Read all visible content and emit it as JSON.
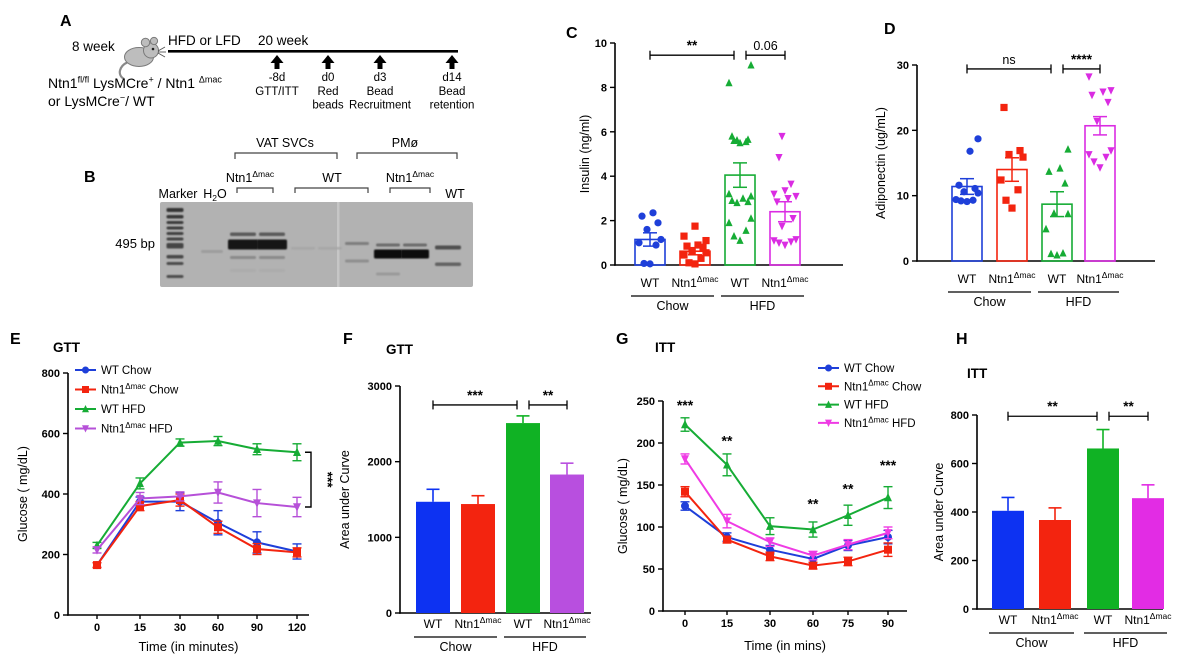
{
  "figure": {
    "background": "#ffffff"
  },
  "panels": {
    "letters": {
      "A": "A",
      "B": "B",
      "C": "C",
      "D": "D",
      "E": "E",
      "F": "F",
      "G": "G",
      "H": "H"
    }
  },
  "panelA": {
    "age_label": "8 week",
    "diet_label": "HFD or LFD",
    "duration_label": "20 week",
    "genotype_line1": [
      {
        "t": "Ntn1"
      },
      {
        "sup": "fl/fl"
      },
      {
        "t": " LysMCre"
      },
      {
        "sup": "+"
      },
      {
        "t": " / Ntn1 "
      },
      {
        "sup": "Δmac"
      }
    ],
    "genotype_line2": [
      {
        "t": "or LysMCre"
      },
      {
        "sup": "−"
      },
      {
        "t": "/ WT"
      }
    ],
    "events": [
      {
        "day": "-8d",
        "desc": [
          "GTT/ITT"
        ]
      },
      {
        "day": "d0",
        "desc": [
          "Red",
          "beads"
        ]
      },
      {
        "day": "d3",
        "desc": [
          "Bead",
          "Recruitment"
        ]
      },
      {
        "day": "d14",
        "desc": [
          "Bead",
          "retention"
        ]
      }
    ]
  },
  "panelB": {
    "top_groups": [
      {
        "label": "VAT SVCs"
      },
      {
        "label": "PMø"
      }
    ],
    "sample_labels": [
      [
        {
          "t": "Ntn1"
        },
        {
          "sup": "Δmac"
        }
      ],
      [
        {
          "t": "WT"
        }
      ],
      [
        {
          "t": "Ntn1"
        },
        {
          "sup": "Δmac"
        }
      ],
      [
        {
          "t": "WT"
        }
      ]
    ],
    "marker_label": "Marker",
    "water_label": [
      {
        "t": "H"
      },
      {
        "sub": "2"
      },
      {
        "t": "O"
      }
    ],
    "size_label": "495 bp",
    "gel_bg": "#b2b2b2"
  },
  "chart_data": [
    {
      "id": "C",
      "type": "scatter-bar",
      "title": null,
      "ylabel": "Insulin (ng/ml)",
      "ylim": [
        0,
        10
      ],
      "yticks": [
        0,
        2,
        4,
        6,
        8,
        10
      ],
      "groups": [
        {
          "label": "WT",
          "color": "#1e3fd9",
          "marker": "circle",
          "mean": 1.15,
          "sem": 0.3,
          "points": [
            0.05,
            0.07,
            0.9,
            1.0,
            1.15,
            1.6,
            1.9,
            2.2,
            2.35
          ]
        },
        {
          "label": "Ntn1",
          "sup": "Δmac",
          "color": "#f3240f",
          "marker": "square",
          "mean": 0.62,
          "sem": 0.16,
          "points": [
            0.05,
            0.1,
            0.3,
            0.45,
            0.55,
            0.62,
            0.8,
            0.85,
            0.9,
            1.1,
            1.3,
            1.75
          ]
        },
        {
          "label": "WT",
          "color": "#16ac35",
          "marker": "triangle-up",
          "mean": 4.05,
          "sem": 0.55,
          "points": [
            1.1,
            1.3,
            1.55,
            1.9,
            2.1,
            2.8,
            2.85,
            2.9,
            3.0,
            3.1,
            3.2,
            5.5,
            5.55,
            5.6,
            5.62,
            5.65,
            5.8,
            8.2,
            9.0
          ]
        },
        {
          "label": "Ntn1",
          "sup": "Δmac",
          "color": "#da2ce2",
          "marker": "triangle-down",
          "mean": 2.4,
          "sem": 0.45,
          "points": [
            0.9,
            1.0,
            1.05,
            1.1,
            1.15,
            1.75,
            2.1,
            2.85,
            3.0,
            3.1,
            3.2,
            3.35,
            3.65,
            4.85,
            5.8
          ]
        }
      ],
      "diet_groups": [
        {
          "label": "Chow",
          "from": 0,
          "to": 1
        },
        {
          "label": "HFD",
          "from": 2,
          "to": 3
        }
      ],
      "brackets": [
        {
          "from": 0,
          "to": 2,
          "label": "**",
          "y": 9.45
        },
        {
          "from": 2,
          "to": 3,
          "label": "0.06",
          "y": 9.45
        }
      ]
    },
    {
      "id": "D",
      "type": "scatter-bar",
      "title": null,
      "ylabel": "Adiponectin (ug/mL)",
      "ylim": [
        0,
        30
      ],
      "yticks": [
        0,
        10,
        20,
        30
      ],
      "groups": [
        {
          "label": "WT",
          "color": "#1e3fd9",
          "marker": "circle",
          "mean": 11.4,
          "sem": 1.2,
          "points": [
            9.1,
            9.2,
            9.3,
            9.4,
            10.4,
            10.6,
            11.1,
            11.6,
            16.8,
            18.7
          ]
        },
        {
          "label": "Ntn1",
          "sup": "Δmac",
          "color": "#f3240f",
          "marker": "square",
          "mean": 14.0,
          "sem": 1.8,
          "points": [
            8.1,
            9.3,
            10.9,
            12.4,
            15.9,
            16.3,
            16.9,
            23.5
          ]
        },
        {
          "label": "WT",
          "color": "#16ac35",
          "marker": "triangle-up",
          "mean": 8.7,
          "sem": 1.9,
          "points": [
            0.9,
            1.1,
            1.2,
            4.9,
            7.2,
            7.3,
            11.9,
            13.7,
            14.2,
            17.1
          ]
        },
        {
          "label": "Ntn1",
          "sup": "Δmac",
          "color": "#da2ce2",
          "marker": "triangle-down",
          "mean": 20.7,
          "sem": 1.4,
          "points": [
            14.3,
            15.2,
            15.9,
            16.3,
            16.9,
            21.4,
            24.3,
            25.4,
            25.9,
            26.1,
            28.2
          ]
        }
      ],
      "diet_groups": [
        {
          "label": "Chow",
          "from": 0,
          "to": 1
        },
        {
          "label": "HFD",
          "from": 2,
          "to": 3
        }
      ],
      "brackets": [
        {
          "from": 0,
          "to": 2,
          "label": "ns",
          "y": 29.4
        },
        {
          "from": 2,
          "to": 3,
          "label": "****",
          "y": 29.4
        }
      ]
    },
    {
      "id": "E",
      "type": "line",
      "title": "GTT",
      "ylabel": "Glucose ( mg/dL)",
      "xlabel": "Time (in minutes)",
      "ylim": [
        0,
        800
      ],
      "yticks": [
        0,
        200,
        400,
        600,
        800
      ],
      "x": [
        0,
        15,
        30,
        60,
        90,
        120
      ],
      "series": [
        {
          "legend": [
            {
              "t": "WT Chow"
            }
          ],
          "color": "#1e3fd9",
          "marker": "circle",
          "values": [
            165,
            375,
            375,
            305,
            240,
            210
          ],
          "err": [
            8,
            15,
            30,
            40,
            35,
            25
          ]
        },
        {
          "legend": [
            {
              "t": "Ntn1"
            },
            {
              "sup": "Δmac"
            },
            {
              "t": " Chow"
            }
          ],
          "color": "#f3240f",
          "marker": "square",
          "values": [
            165,
            360,
            380,
            290,
            218,
            207
          ],
          "err": [
            8,
            15,
            20,
            20,
            18,
            15
          ]
        },
        {
          "legend": [
            {
              "t": "WT  HFD"
            }
          ],
          "color": "#16ac35",
          "marker": "triangle-up",
          "values": [
            230,
            435,
            570,
            575,
            548,
            538
          ],
          "err": [
            10,
            18,
            12,
            15,
            18,
            28
          ]
        },
        {
          "legend": [
            {
              "t": "Ntn1"
            },
            {
              "sup": "Δmac"
            },
            {
              "t": " HFD"
            }
          ],
          "color": "#b650d8",
          "marker": "triangle-down",
          "values": [
            215,
            385,
            392,
            405,
            370,
            357
          ],
          "err": [
            10,
            20,
            15,
            35,
            45,
            32
          ]
        }
      ],
      "right_bracket": {
        "label": "***",
        "series_top": 2,
        "series_bottom": 3
      }
    },
    {
      "id": "F",
      "type": "bar",
      "title": "GTT",
      "ylabel": "Area under Curve",
      "ylim": [
        0,
        3000
      ],
      "yticks": [
        0,
        1000,
        2000,
        3000
      ],
      "groups": [
        {
          "label": "WT",
          "color": "#0d32f2",
          "value": 1470,
          "err": 165
        },
        {
          "label": "Ntn1",
          "sup": "Δmac",
          "color": "#f3240f",
          "value": 1440,
          "err": 110
        },
        {
          "label": "WT",
          "color": "#10b224",
          "value": 2510,
          "err": 95
        },
        {
          "label": "Ntn1",
          "sup": "Δmac",
          "color": "#b84fdf",
          "value": 1830,
          "err": 150
        }
      ],
      "diet_groups": [
        {
          "label": "Chow",
          "from": 0,
          "to": 1
        },
        {
          "label": "HFD",
          "from": 2,
          "to": 3
        }
      ],
      "brackets": [
        {
          "from": 0,
          "to": 2,
          "label": "***",
          "y": 2750
        },
        {
          "from": 2,
          "to": 3,
          "label": "**",
          "y": 2750
        }
      ]
    },
    {
      "id": "G",
      "type": "line",
      "title": "ITT",
      "ylabel": "Glucose ( mg/dL)",
      "xlabel": "Time (in mins)",
      "ylim": [
        0,
        250
      ],
      "yticks": [
        0,
        50,
        100,
        150,
        200,
        250
      ],
      "x": [
        0,
        15,
        30,
        60,
        75,
        90
      ],
      "series": [
        {
          "legend": [
            {
              "t": "WT Chow"
            }
          ],
          "color": "#1e3fd9",
          "marker": "circle",
          "values": [
            125,
            88,
            73,
            62,
            78,
            88
          ],
          "err": [
            5,
            5,
            5,
            6,
            6,
            8
          ]
        },
        {
          "legend": [
            {
              "t": "Ntn1"
            },
            {
              "sup": "Δmac"
            },
            {
              "t": " Chow"
            }
          ],
          "color": "#f3240f",
          "marker": "square",
          "values": [
            142,
            85,
            65,
            54,
            59,
            73
          ],
          "err": [
            6,
            4,
            5,
            4,
            5,
            8
          ]
        },
        {
          "legend": [
            {
              "t": "WT  HFD"
            }
          ],
          "color": "#16ac35",
          "marker": "triangle-up",
          "values": [
            222,
            174,
            101,
            97,
            114,
            135
          ],
          "err": [
            8,
            13,
            10,
            9,
            12,
            13
          ]
        },
        {
          "legend": [
            {
              "t": "Ntn1"
            },
            {
              "sup": "Δmac"
            },
            {
              "t": " HFD"
            }
          ],
          "color": "#ef3be4",
          "marker": "triangle-down",
          "values": [
            181,
            107,
            82,
            66,
            79,
            93
          ],
          "err": [
            6,
            8,
            5,
            5,
            6,
            7
          ]
        }
      ],
      "stars": [
        {
          "xi": 0,
          "y": 239,
          "label": "***"
        },
        {
          "xi": 1,
          "y": 197,
          "label": "**"
        },
        {
          "xi": 3,
          "y": 122,
          "label": "**"
        },
        {
          "xi": 4,
          "y": 140,
          "label": "**"
        },
        {
          "xi": 5,
          "y": 168,
          "label": "***"
        }
      ]
    },
    {
      "id": "H",
      "type": "bar",
      "title": "ITT",
      "ylabel": "Area under Curve",
      "ylim": [
        0,
        800
      ],
      "yticks": [
        0,
        200,
        400,
        600,
        800
      ],
      "groups": [
        {
          "label": "WT",
          "color": "#0d32f2",
          "value": 405,
          "err": 55
        },
        {
          "label": "Ntn1",
          "sup": "Δmac",
          "color": "#f3240f",
          "value": 367,
          "err": 50
        },
        {
          "label": "WT",
          "color": "#10b224",
          "value": 662,
          "err": 78
        },
        {
          "label": "Ntn1",
          "sup": "Δmac",
          "color": "#e22ce4",
          "value": 457,
          "err": 55
        }
      ],
      "diet_groups": [
        {
          "label": "Chow",
          "from": 0,
          "to": 1
        },
        {
          "label": "HFD",
          "from": 2,
          "to": 3
        }
      ],
      "brackets": [
        {
          "from": 0,
          "to": 2,
          "label": "**",
          "y": 795
        },
        {
          "from": 2,
          "to": 3,
          "label": "**",
          "y": 795
        }
      ]
    }
  ]
}
